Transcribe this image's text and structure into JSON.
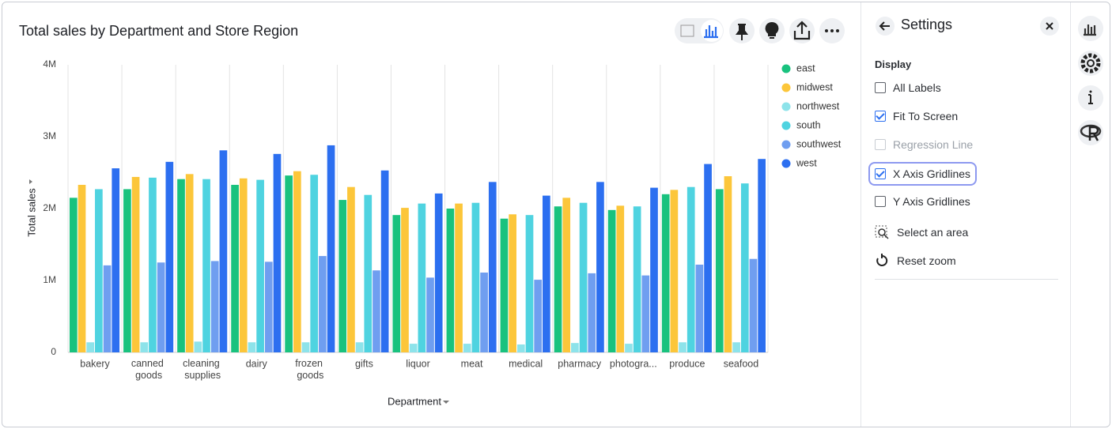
{
  "chart_data": {
    "type": "bar",
    "title": "Total sales by Department and Store Region",
    "x_label": "Department",
    "y_label": "Total sales",
    "categories": [
      "bakery",
      "canned goods",
      "cleaning supplies",
      "dairy",
      "frozen goods",
      "gifts",
      "liquor",
      "meat",
      "medical",
      "pharmacy",
      "photogra...",
      "produce",
      "seafood"
    ],
    "series": [
      {
        "name": "east",
        "color": "#19c27e",
        "values": [
          2150000,
          2270000,
          2410000,
          2330000,
          2460000,
          2120000,
          1910000,
          2000000,
          1860000,
          2030000,
          1980000,
          2200000,
          2270000
        ]
      },
      {
        "name": "midwest",
        "color": "#fcc63a",
        "values": [
          2330000,
          2440000,
          2480000,
          2420000,
          2520000,
          2300000,
          2010000,
          2070000,
          1920000,
          2150000,
          2040000,
          2260000,
          2450000
        ]
      },
      {
        "name": "northwest",
        "color": "#8de3ea",
        "values": [
          140000,
          140000,
          150000,
          140000,
          140000,
          140000,
          120000,
          120000,
          110000,
          130000,
          120000,
          140000,
          140000
        ]
      },
      {
        "name": "south",
        "color": "#4fd3e0",
        "values": [
          2270000,
          2430000,
          2410000,
          2400000,
          2470000,
          2190000,
          2070000,
          2080000,
          1910000,
          2080000,
          2030000,
          2300000,
          2350000
        ]
      },
      {
        "name": "southwest",
        "color": "#6f9ef0",
        "values": [
          1210000,
          1250000,
          1270000,
          1260000,
          1340000,
          1140000,
          1040000,
          1110000,
          1010000,
          1100000,
          1070000,
          1220000,
          1300000
        ]
      },
      {
        "name": "west",
        "color": "#2c6ff0",
        "values": [
          2560000,
          2650000,
          2810000,
          2760000,
          2880000,
          2530000,
          2210000,
          2370000,
          2180000,
          2370000,
          2290000,
          2620000,
          2690000
        ]
      }
    ],
    "ylim": [
      0,
      4000000
    ],
    "yticks": [
      0,
      {
        "value": 1000000,
        "label": "1M"
      },
      {
        "value": 2000000,
        "label": "2M"
      },
      {
        "value": 3000000,
        "label": "3M"
      },
      {
        "value": 4000000,
        "label": "4M"
      }
    ],
    "x_grid": true,
    "y_grid": false,
    "legend": "right"
  },
  "settings": {
    "title": "Settings",
    "section": "Display",
    "options": [
      {
        "label": "All Labels",
        "checked": false,
        "disabled": false
      },
      {
        "label": "Fit To Screen",
        "checked": true,
        "disabled": false
      },
      {
        "label": "Regression Line",
        "checked": false,
        "disabled": true
      },
      {
        "label": "X Axis Gridlines",
        "checked": true,
        "disabled": false
      },
      {
        "label": "Y Axis Gridlines",
        "checked": false,
        "disabled": false
      }
    ],
    "actions": [
      "Select an area",
      "Reset zoom"
    ]
  }
}
